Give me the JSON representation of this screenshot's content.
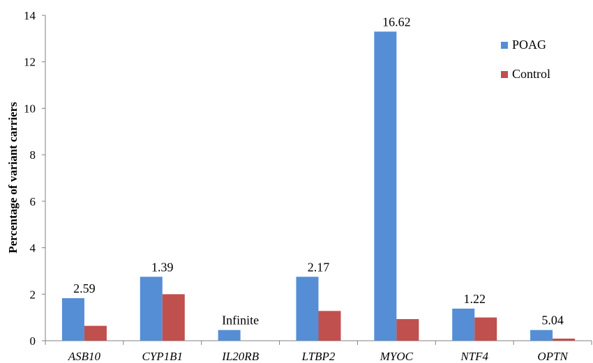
{
  "chart_data": {
    "type": "bar",
    "title": "",
    "xlabel": "",
    "ylabel": "Percentage of variant carriers",
    "ylim": [
      0,
      14
    ],
    "yticks": [
      0,
      2,
      4,
      6,
      8,
      10,
      12,
      14
    ],
    "categories": [
      "ASB10",
      "CYP1B1",
      "IL20RB",
      "LTBP2",
      "MYOC",
      "NTF4",
      "OPTN"
    ],
    "series": [
      {
        "name": "POAG",
        "color": "#558ED5",
        "values": [
          1.83,
          2.75,
          0.46,
          2.75,
          13.3,
          1.38,
          0.46
        ]
      },
      {
        "name": "Control",
        "color": "#C0504D",
        "values": [
          0.64,
          2.0,
          0.0,
          1.28,
          0.93,
          1.0,
          0.09
        ]
      }
    ],
    "data_labels": [
      "2.59",
      "1.39",
      "Infinite",
      "2.17",
      "16.62",
      "1.22",
      "5.04"
    ],
    "legend": {
      "position": "top-right",
      "entries": [
        "POAG",
        "Control"
      ]
    },
    "grid": false
  }
}
